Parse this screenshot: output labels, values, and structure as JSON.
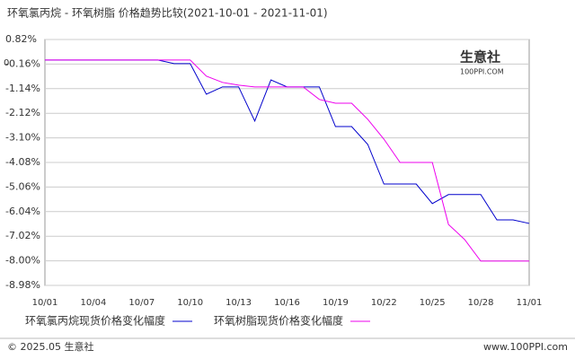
{
  "chart_data": {
    "type": "line",
    "title": "环氧氯丙烷 - 环氧树脂 价格趋势比较(2021-10-01 - 2021-11-01)",
    "categories": [
      "10/01",
      null,
      null,
      "10/04",
      null,
      null,
      "10/07",
      null,
      null,
      "10/10",
      null,
      null,
      "10/13",
      null,
      null,
      "10/16",
      null,
      null,
      "10/19",
      null,
      null,
      "10/22",
      null,
      null,
      "10/25",
      null,
      null,
      "10/28",
      null,
      null,
      "11/01"
    ],
    "series": [
      {
        "name": "环氧氯丙烷现货价格变化幅度",
        "color": "#0000cc",
        "values": [
          0,
          0,
          0,
          0,
          0,
          0,
          0,
          0,
          -0.14,
          -0.14,
          -1.36,
          -1.07,
          -1.07,
          -2.43,
          -0.79,
          -1.07,
          -1.07,
          -1.07,
          -2.65,
          -2.65,
          -3.36,
          -4.94,
          -4.94,
          -4.94,
          -5.72,
          -5.36,
          -5.36,
          -5.36,
          -6.37,
          -6.37,
          -6.51
        ]
      },
      {
        "name": "环氧树脂现货价格变化幅度",
        "color": "#ee00ee",
        "values": [
          0,
          0,
          0,
          0,
          0,
          0,
          0,
          0,
          0,
          0,
          -0.64,
          -0.89,
          -1.0,
          -1.07,
          -1.07,
          -1.07,
          -1.07,
          -1.57,
          -1.72,
          -1.72,
          -2.36,
          -3.15,
          -4.08,
          -4.08,
          -4.08,
          -6.55,
          -7.15,
          -8.01,
          -8.01,
          -8.01,
          -8.01
        ]
      }
    ],
    "ylim": [
      -8.98,
      0.82
    ],
    "yticks": [
      {
        "value": 0.82,
        "label": "0.82%"
      },
      {
        "value": -0.16,
        "label": "-0.16%"
      },
      {
        "value": -1.14,
        "label": "-1.14%"
      },
      {
        "value": -2.12,
        "label": "-2.12%"
      },
      {
        "value": -3.1,
        "label": "-3.10%"
      },
      {
        "value": -4.08,
        "label": "-4.08%"
      },
      {
        "value": -5.06,
        "label": "-5.06%"
      },
      {
        "value": -6.04,
        "label": "-6.04%"
      },
      {
        "value": -7.02,
        "label": "-7.02%"
      },
      {
        "value": -8.0,
        "label": "-8.00%"
      },
      {
        "value": -8.98,
        "label": "-8.98%"
      }
    ],
    "grid": true,
    "baseline_label": "0",
    "watermark": "生意社",
    "watermark_url": "100PPI.COM",
    "copyright": "© 2025.05 生意社",
    "source": "www.100PPI.com"
  }
}
